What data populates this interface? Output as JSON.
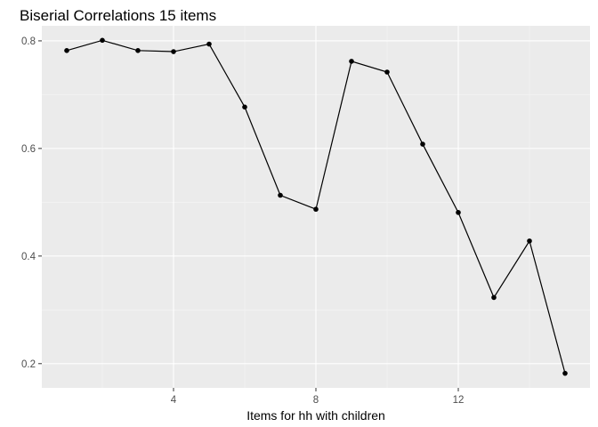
{
  "chart_data": {
    "type": "line",
    "title": "Biserial Correlations 15 items",
    "xlabel": "Items for hh with children",
    "ylabel": "",
    "x": [
      1,
      2,
      3,
      4,
      5,
      6,
      7,
      8,
      9,
      10,
      11,
      12,
      13,
      14,
      15
    ],
    "values": [
      0.782,
      0.801,
      0.782,
      0.78,
      0.794,
      0.677,
      0.513,
      0.487,
      0.762,
      0.742,
      0.608,
      0.481,
      0.323,
      0.428,
      0.182
    ],
    "xlim": [
      0.3,
      15.7
    ],
    "ylim": [
      0.155,
      0.828
    ],
    "x_ticks": [
      4,
      8,
      12
    ],
    "x_tick_labels": [
      "4",
      "8",
      "12"
    ],
    "x_minor_ticks": [
      2,
      6,
      10,
      14
    ],
    "y_ticks": [
      0.2,
      0.4,
      0.6,
      0.8
    ],
    "y_tick_labels": [
      "0.2",
      "0.4",
      "0.6",
      "0.8"
    ],
    "y_minor_ticks": [
      0.3,
      0.5,
      0.7
    ],
    "grid": true,
    "legend": "none",
    "colors": {
      "panel_background": "#ebebeb",
      "grid_major": "#ffffff",
      "grid_minor": "#f5f5f5",
      "line": "#000000",
      "point": "#000000",
      "tick_label": "#4d4d4d",
      "tick_mark": "#333333"
    }
  }
}
